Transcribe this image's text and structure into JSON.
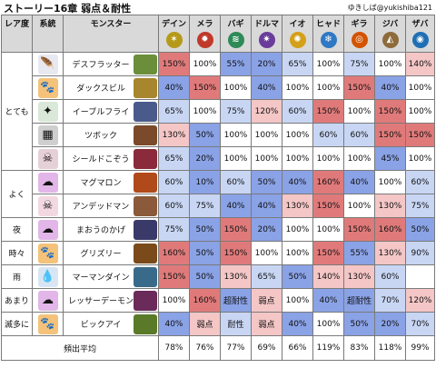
{
  "header": {
    "title": "ストーリー16章 弱点＆耐性",
    "credit": "ゆきしば@yukishiba121"
  },
  "columns": {
    "rank": "レア度",
    "system": "系統",
    "monster": "モンスター"
  },
  "elements": [
    {
      "name": "デイン",
      "icon": "thunder-icon",
      "glyph": "✶",
      "color": "#b59a1a"
    },
    {
      "name": "メラ",
      "icon": "fire-icon",
      "glyph": "✹",
      "color": "#c0392b"
    },
    {
      "name": "バギ",
      "icon": "wind-icon",
      "glyph": "≋",
      "color": "#2e8b57"
    },
    {
      "name": "ドルマ",
      "icon": "dark-icon",
      "glyph": "✷",
      "color": "#6a3d9a"
    },
    {
      "name": "イオ",
      "icon": "explosion-icon",
      "glyph": "✺",
      "color": "#d4a017"
    },
    {
      "name": "ヒャド",
      "icon": "ice-icon",
      "glyph": "❄",
      "color": "#2f78c4"
    },
    {
      "name": "ギラ",
      "icon": "flame-ring-icon",
      "glyph": "◎",
      "color": "#d35400"
    },
    {
      "name": "ジバ",
      "icon": "earth-icon",
      "glyph": "◭",
      "color": "#8e6b3a"
    },
    {
      "name": "ザバ",
      "icon": "water-icon",
      "glyph": "◉",
      "color": "#1f6fb5"
    }
  ],
  "rows": [
    {
      "rank": "とても",
      "rank_span": 5,
      "system": "bird-icon",
      "sys_glyph": "🪶",
      "sys_color": "#e8e8f0",
      "monster": "デスフラッター",
      "thumb": "#6b8e3a",
      "values": [
        "150%",
        "100%",
        "55%",
        "20%",
        "65%",
        "100%",
        "75%",
        "100%",
        "140%"
      ]
    },
    {
      "rank": "",
      "rank_span": 0,
      "system": "beast-paw-icon",
      "sys_glyph": "🐾",
      "sys_color": "#f4c27a",
      "monster": "ダックスビル",
      "thumb": "#a8862e",
      "values": [
        "40%",
        "150%",
        "100%",
        "40%",
        "100%",
        "100%",
        "150%",
        "40%",
        "100%"
      ]
    },
    {
      "rank": "",
      "rank_span": 0,
      "system": "insect-icon",
      "sys_glyph": "✦",
      "sys_color": "#d9e8d9",
      "monster": "イーブルフライ",
      "thumb": "#4a5a8a",
      "values": [
        "65%",
        "100%",
        "75%",
        "120%",
        "60%",
        "150%",
        "100%",
        "150%",
        "100%"
      ]
    },
    {
      "rank": "",
      "rank_span": 0,
      "system": "material-icon",
      "sys_glyph": "▦",
      "sys_color": "#cfcfcf",
      "monster": "ツボック",
      "thumb": "#7a4a2a",
      "values": [
        "130%",
        "50%",
        "100%",
        "100%",
        "100%",
        "60%",
        "60%",
        "150%",
        "150%"
      ]
    },
    {
      "rank": "",
      "rank_span": 0,
      "system": "zombie-icon",
      "sys_glyph": "☠",
      "sys_color": "#e6d0d8",
      "monster": "シールドこぞう",
      "thumb": "#8a2a3a",
      "values": [
        "65%",
        "20%",
        "100%",
        "100%",
        "100%",
        "100%",
        "100%",
        "45%",
        "100%"
      ]
    },
    {
      "rank": "よく",
      "rank_span": 2,
      "system": "slime-icon",
      "sys_glyph": "☁",
      "sys_color": "#e2b6e8",
      "monster": "マグマロン",
      "thumb": "#b04a1a",
      "values": [
        "60%",
        "10%",
        "60%",
        "50%",
        "40%",
        "160%",
        "40%",
        "100%",
        "60%"
      ]
    },
    {
      "rank": "",
      "rank_span": 0,
      "system": "skull-icon",
      "sys_glyph": "☠",
      "sys_color": "#f2d8e0",
      "monster": "アンデッドマン",
      "thumb": "#8a5a3a",
      "values": [
        "60%",
        "75%",
        "40%",
        "40%",
        "130%",
        "150%",
        "100%",
        "130%",
        "75%"
      ]
    },
    {
      "rank": "夜",
      "rank_span": 1,
      "system": "demon-icon",
      "sys_glyph": "☁",
      "sys_color": "#e2b6e8",
      "monster": "まおうのかげ",
      "thumb": "#3a3a6a",
      "values": [
        "75%",
        "50%",
        "150%",
        "20%",
        "100%",
        "100%",
        "150%",
        "160%",
        "50%"
      ]
    },
    {
      "rank": "時々",
      "rank_span": 1,
      "system": "beast-paw-icon",
      "sys_glyph": "🐾",
      "sys_color": "#f4c27a",
      "monster": "グリズリー",
      "thumb": "#7a4a1a",
      "values": [
        "160%",
        "50%",
        "150%",
        "100%",
        "100%",
        "150%",
        "55%",
        "130%",
        "90%"
      ]
    },
    {
      "rank": "雨",
      "rank_span": 1,
      "system": "water-drop-icon",
      "sys_glyph": "💧",
      "sys_color": "#d8e6f4",
      "monster": "マーマンダイン",
      "thumb": "#3a6a8a",
      "values": [
        "150%",
        "50%",
        "130%",
        "65%",
        "50%",
        "140%",
        "130%",
        "60%",
        ""
      ]
    },
    {
      "rank": "あまり",
      "rank_span": 1,
      "system": "slime-icon",
      "sys_glyph": "☁",
      "sys_color": "#e2b6e8",
      "monster": "レッサーデーモン",
      "thumb": "#6a2a5a",
      "values": [
        "100%",
        "160%",
        "超耐性",
        "弱点",
        "100%",
        "40%",
        "超耐性",
        "70%",
        "120%"
      ]
    },
    {
      "rank": "滅多に",
      "rank_span": 1,
      "system": "beast-paw-icon",
      "sys_glyph": "🐾",
      "sys_color": "#f4c27a",
      "monster": "ビックアイ",
      "thumb": "#5a7a2a",
      "values": [
        "40%",
        "弱点",
        "耐性",
        "弱点",
        "40%",
        "100%",
        "50%",
        "20%",
        "70%"
      ]
    }
  ],
  "average": {
    "label": "頻出平均",
    "values": [
      "78%",
      "76%",
      "77%",
      "69%",
      "66%",
      "119%",
      "83%",
      "118%",
      "99%"
    ]
  },
  "colors": {
    "weak_strong": "#e07a7a",
    "weak_mild": "#f4c6c6",
    "neutral": "#ffffff",
    "resist_mild": "#c8d6f4",
    "resist_strong": "#8aa2e6"
  }
}
